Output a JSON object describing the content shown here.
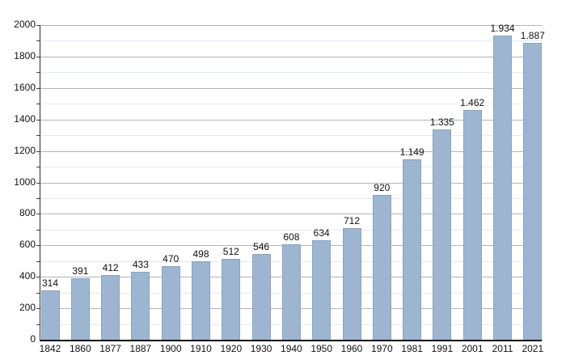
{
  "chart_data": {
    "type": "bar",
    "title": "",
    "xlabel": "",
    "ylabel": "",
    "categories": [
      "1842",
      "1860",
      "1877",
      "1887",
      "1900",
      "1910",
      "1920",
      "1930",
      "1940",
      "1950",
      "1960",
      "1970",
      "1981",
      "1991",
      "2001",
      "2011",
      "2021"
    ],
    "values": [
      314,
      391,
      412,
      433,
      470,
      498,
      512,
      546,
      608,
      634,
      712,
      920,
      1149,
      1335,
      1462,
      1934,
      1887
    ],
    "value_labels": [
      "314",
      "391",
      "412",
      "433",
      "470",
      "498",
      "512",
      "546",
      "608",
      "634",
      "712",
      "920",
      "1.149",
      "1.335",
      "1.462",
      "1.934",
      "1.887"
    ],
    "ylim": [
      0,
      2000
    ],
    "y_major_tick_labels": [
      "0",
      "200",
      "400",
      "600",
      "800",
      "1000",
      "1200",
      "1400",
      "1600",
      "1800",
      "2000"
    ],
    "y_major_step": 200,
    "y_minor_step": 100,
    "grid": "horizontal major + faint minor, no vertical grid",
    "legend": "none",
    "colors": {
      "bar_fill": "#9db5d1",
      "bar_border": "#8ba3bd",
      "grid_major": "#b5b5b5",
      "grid_minor": "#e3e9f0",
      "axis": "#000000",
      "text": "#111111",
      "background": "#ffffff"
    }
  }
}
